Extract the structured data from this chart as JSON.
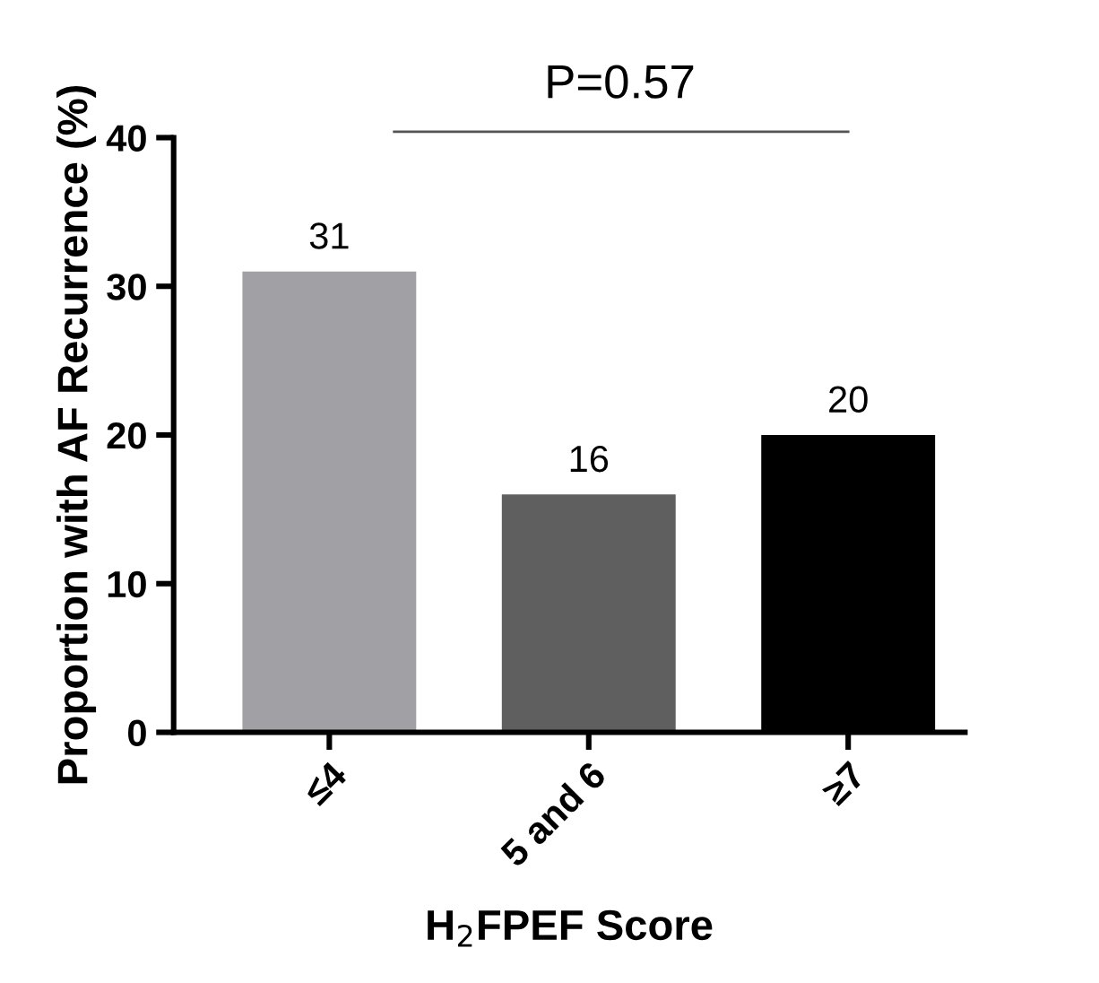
{
  "chart_data": {
    "type": "bar",
    "xlabel": "H$_{2}$FPEF Score",
    "ylabel": "Proportion with AF Recurrence (%)",
    "categories": [
      "≤4",
      "5 and 6",
      "≥7"
    ],
    "values": [
      31,
      16,
      20
    ],
    "colors": [
      "#a1a0a5",
      "#5f5f5f",
      "#000000"
    ],
    "ylim": [
      0,
      40
    ],
    "yticks": [
      0,
      10,
      20,
      30,
      40
    ],
    "data_labels": true,
    "grid": false,
    "legend": false,
    "annotations": [
      "P=0.57"
    ]
  }
}
